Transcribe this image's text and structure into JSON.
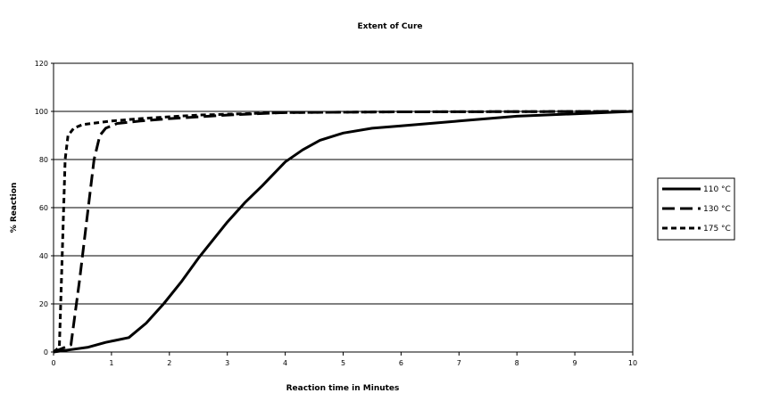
{
  "chart_data": {
    "type": "line",
    "title": "Extent of Cure",
    "xlabel": "Reaction time in Minutes",
    "ylabel": "% Reaction",
    "xlim": [
      0,
      10
    ],
    "ylim": [
      0,
      120
    ],
    "x_ticks": [
      "0",
      "1",
      "2",
      "3",
      "4",
      "5",
      "6",
      "7",
      "8",
      "9",
      "10"
    ],
    "y_ticks": [
      "0",
      "20",
      "40",
      "60",
      "80",
      "100",
      "120"
    ],
    "grid": "horizontal",
    "legend_position": "right",
    "series": [
      {
        "name": "110 °C",
        "style": "solid",
        "points": [
          [
            0,
            0
          ],
          [
            0.3,
            1
          ],
          [
            0.6,
            2
          ],
          [
            0.9,
            4
          ],
          [
            1.3,
            6
          ],
          [
            1.6,
            12
          ],
          [
            1.9,
            20
          ],
          [
            2.2,
            29
          ],
          [
            2.5,
            39
          ],
          [
            2.8,
            48
          ],
          [
            3.0,
            54
          ],
          [
            3.3,
            62
          ],
          [
            3.6,
            69
          ],
          [
            4.0,
            79
          ],
          [
            4.3,
            84
          ],
          [
            4.6,
            88
          ],
          [
            5.0,
            91
          ],
          [
            5.5,
            93
          ],
          [
            6.0,
            94
          ],
          [
            7.0,
            96
          ],
          [
            8.0,
            98
          ],
          [
            9.0,
            99
          ],
          [
            10.0,
            100
          ]
        ]
      },
      {
        "name": "130 °C",
        "style": "long-dash",
        "points": [
          [
            0,
            0
          ],
          [
            0.3,
            3
          ],
          [
            0.45,
            30
          ],
          [
            0.6,
            60
          ],
          [
            0.7,
            80
          ],
          [
            0.8,
            90
          ],
          [
            0.9,
            93
          ],
          [
            1.1,
            95
          ],
          [
            1.5,
            96
          ],
          [
            2.0,
            97
          ],
          [
            3.0,
            98.5
          ],
          [
            4.0,
            99.5
          ],
          [
            6.0,
            99.8
          ],
          [
            10.0,
            100
          ]
        ]
      },
      {
        "name": "175 °C",
        "style": "short-dash",
        "points": [
          [
            0,
            0
          ],
          [
            0.1,
            2
          ],
          [
            0.15,
            40
          ],
          [
            0.2,
            80
          ],
          [
            0.25,
            90
          ],
          [
            0.35,
            93
          ],
          [
            0.5,
            94.5
          ],
          [
            1.0,
            96
          ],
          [
            1.5,
            97
          ],
          [
            2.5,
            98.5
          ],
          [
            4.0,
            99.5
          ],
          [
            6.0,
            99.8
          ],
          [
            10.0,
            100
          ]
        ]
      }
    ]
  }
}
